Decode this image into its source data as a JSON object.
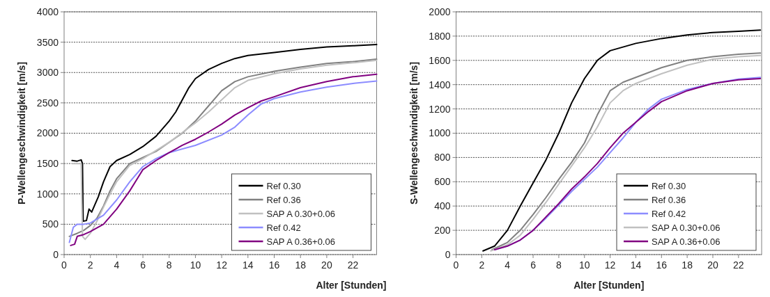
{
  "chart_data": [
    {
      "type": "line",
      "xlabel": "Alter [Stunden]",
      "ylabel": "P-Wellengeschwindigkeit [m/s]",
      "xlim": [
        0,
        23.8
      ],
      "xticks": [
        0,
        2,
        4,
        6,
        8,
        10,
        12,
        14,
        16,
        18,
        20,
        22
      ],
      "ylim": [
        0,
        4000
      ],
      "yticks": [
        0,
        500,
        1000,
        1500,
        2000,
        2500,
        3000,
        3500,
        4000
      ],
      "grid": "y",
      "legend": "bottom right",
      "line_style": "solid",
      "marker": "none",
      "series": [
        {
          "name": "Ref 0.30",
          "color": "#000000",
          "x": [
            0.6,
            1.0,
            1.3,
            1.4,
            1.45,
            1.7,
            1.9,
            2.1,
            2.3,
            2.6,
            3,
            3.5,
            4,
            5,
            6,
            7,
            8,
            8.5,
            9,
            9.5,
            10,
            11,
            12,
            13,
            14,
            16,
            18,
            20,
            22,
            23.8
          ],
          "values": [
            1550,
            1540,
            1560,
            1500,
            550,
            560,
            750,
            700,
            800,
            950,
            1200,
            1450,
            1550,
            1650,
            1780,
            1950,
            2200,
            2350,
            2550,
            2750,
            2900,
            3050,
            3150,
            3230,
            3280,
            3330,
            3380,
            3420,
            3440,
            3460
          ]
        },
        {
          "name": "Ref 0.36",
          "color": "#808080",
          "x": [
            0.4,
            1,
            1.5,
            2,
            2.5,
            3,
            3.5,
            4,
            5,
            6,
            7,
            8,
            9,
            10,
            11,
            12,
            13,
            14,
            16,
            18,
            20,
            22,
            23.8
          ],
          "values": [
            300,
            350,
            400,
            480,
            600,
            800,
            1050,
            1250,
            1500,
            1600,
            1700,
            1850,
            2000,
            2200,
            2450,
            2700,
            2850,
            2930,
            3020,
            3090,
            3150,
            3180,
            3220
          ]
        },
        {
          "name": "SAP A 0.30+0.06",
          "color": "#c0c0c0",
          "x": [
            0.6,
            1.3,
            1.4,
            1.6,
            2,
            2.5,
            3,
            3.5,
            4,
            5,
            6,
            8,
            10,
            11,
            12,
            13,
            14,
            16,
            18,
            20,
            22,
            23.8
          ],
          "values": [
            1500,
            1500,
            300,
            250,
            350,
            550,
            780,
            1000,
            1200,
            1470,
            1580,
            1850,
            2170,
            2350,
            2550,
            2750,
            2870,
            2980,
            3060,
            3120,
            3160,
            3200
          ]
        },
        {
          "name": "Ref 0.42",
          "color": "#8c8cff",
          "x": [
            0.4,
            0.7,
            1,
            1.5,
            2,
            3,
            4,
            5,
            6,
            7,
            8,
            10,
            12,
            13,
            14,
            15,
            16,
            18,
            20,
            22,
            23.8
          ],
          "values": [
            200,
            450,
            500,
            500,
            520,
            650,
            900,
            1200,
            1450,
            1580,
            1680,
            1800,
            1970,
            2100,
            2300,
            2480,
            2570,
            2680,
            2760,
            2820,
            2860
          ]
        },
        {
          "name": "SAP A 0.36+0.06",
          "color": "#800080",
          "x": [
            0.5,
            0.8,
            1,
            1.5,
            2,
            3,
            4,
            5,
            6,
            7,
            8,
            9,
            10,
            11,
            12,
            13,
            14,
            15,
            16,
            18,
            20,
            22,
            23.8
          ],
          "values": [
            150,
            170,
            300,
            330,
            380,
            500,
            750,
            1050,
            1400,
            1550,
            1680,
            1800,
            1900,
            2020,
            2150,
            2300,
            2420,
            2530,
            2600,
            2750,
            2850,
            2930,
            2970
          ]
        }
      ]
    },
    {
      "type": "line",
      "xlabel": "Alter [Stunden]",
      "ylabel": "S-Wellengeschwindigkeit [m/s]",
      "xlim": [
        0,
        23.8
      ],
      "xticks": [
        0,
        2,
        4,
        6,
        8,
        10,
        12,
        14,
        16,
        18,
        20,
        22
      ],
      "ylim": [
        0,
        2000
      ],
      "yticks": [
        0,
        200,
        400,
        600,
        800,
        1000,
        1200,
        1400,
        1600,
        1800,
        2000
      ],
      "grid": "y",
      "legend": "bottom right",
      "line_style": "solid",
      "marker": "none",
      "series": [
        {
          "name": "Ref 0.30",
          "color": "#000000",
          "x": [
            2.1,
            3,
            4,
            5,
            6,
            7,
            8,
            9,
            10,
            11,
            12,
            14,
            16,
            18,
            20,
            22,
            23.7
          ],
          "values": [
            30,
            70,
            200,
            400,
            590,
            780,
            1000,
            1250,
            1450,
            1600,
            1680,
            1740,
            1780,
            1810,
            1830,
            1840,
            1850
          ]
        },
        {
          "name": "Ref 0.36",
          "color": "#808080",
          "x": [
            2.8,
            4,
            5,
            6,
            7,
            8,
            9,
            10,
            11,
            12,
            13,
            14,
            16,
            18,
            20,
            22,
            23.7
          ],
          "values": [
            40,
            100,
            200,
            330,
            470,
            620,
            760,
            920,
            1150,
            1350,
            1420,
            1460,
            1540,
            1600,
            1630,
            1650,
            1660
          ]
        },
        {
          "name": "Ref 0.42",
          "color": "#8c8cff",
          "x": [
            3,
            4,
            5,
            6,
            7,
            8,
            9,
            10,
            11,
            12,
            13,
            14,
            15,
            16,
            18,
            20,
            22,
            23.7
          ],
          "values": [
            40,
            70,
            120,
            200,
            300,
            410,
            520,
            620,
            720,
            840,
            960,
            1090,
            1200,
            1280,
            1360,
            1410,
            1445,
            1460
          ]
        },
        {
          "name": "SAP A 0.30+0.06",
          "color": "#c0c0c0",
          "x": [
            2.7,
            4,
            5,
            6,
            7,
            8,
            9,
            10,
            11,
            12,
            13,
            14,
            16,
            18,
            20,
            22,
            23.7
          ],
          "values": [
            30,
            80,
            160,
            290,
            430,
            580,
            730,
            880,
            1050,
            1250,
            1350,
            1410,
            1490,
            1560,
            1610,
            1630,
            1640
          ]
        },
        {
          "name": "SAP A 0.36+0.06",
          "color": "#800080",
          "x": [
            3,
            4,
            5,
            6,
            7,
            8,
            9,
            10,
            11,
            12,
            13,
            14,
            15,
            16,
            18,
            20,
            22,
            23.7
          ],
          "values": [
            40,
            70,
            120,
            200,
            310,
            420,
            540,
            640,
            750,
            880,
            1000,
            1090,
            1180,
            1260,
            1350,
            1410,
            1440,
            1450
          ]
        }
      ]
    }
  ]
}
